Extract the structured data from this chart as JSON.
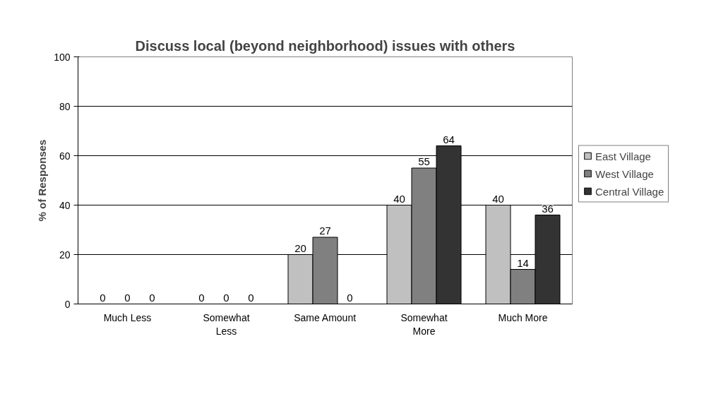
{
  "chart_data": {
    "type": "bar",
    "title": "Discuss local (beyond neighborhood) issues with others",
    "ylabel": "% of Responses",
    "categories": [
      "Much Less",
      "Somewhat Less",
      "Same Amount",
      "Somewhat More",
      "Much More"
    ],
    "series": [
      {
        "name": "East Village",
        "color": "#c0c0c0",
        "values": [
          0,
          0,
          20,
          40,
          40
        ]
      },
      {
        "name": "West Village",
        "color": "#808080",
        "values": [
          0,
          0,
          27,
          55,
          14
        ]
      },
      {
        "name": "Central Village",
        "color": "#333333",
        "values": [
          0,
          0,
          0,
          64,
          36
        ]
      }
    ],
    "ylim": [
      0,
      100
    ],
    "yticks": [
      0,
      20,
      40,
      60,
      80,
      100
    ],
    "grid": "y",
    "legend": "right",
    "data_labels": true
  }
}
